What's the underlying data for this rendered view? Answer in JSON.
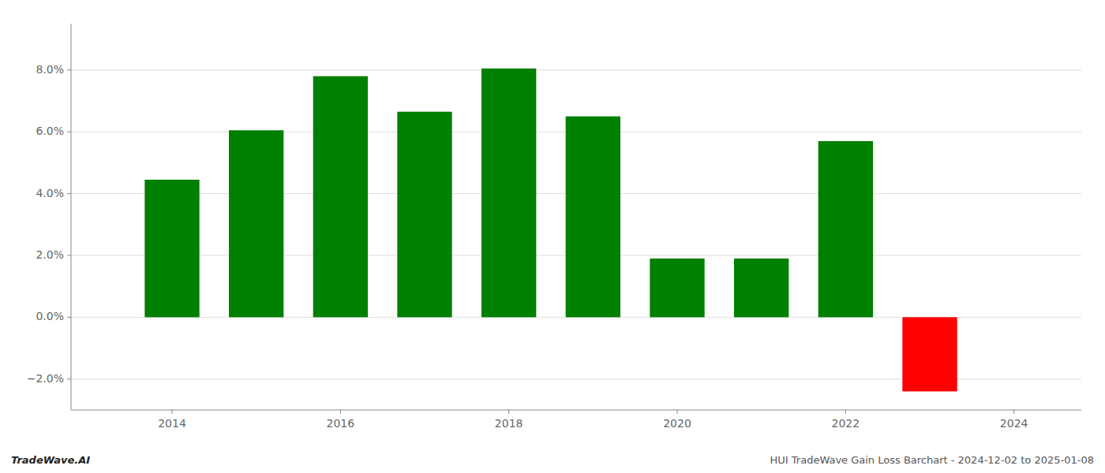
{
  "chart_data": {
    "type": "bar",
    "x": [
      2014,
      2015,
      2016,
      2017,
      2018,
      2019,
      2020,
      2021,
      2022,
      2023
    ],
    "values": [
      0.0445,
      0.0605,
      0.078,
      0.0665,
      0.0805,
      0.065,
      0.019,
      0.019,
      0.057,
      -0.024
    ],
    "colors": [
      "#008000",
      "#008000",
      "#008000",
      "#008000",
      "#008000",
      "#008000",
      "#008000",
      "#008000",
      "#008000",
      "#ff0000"
    ],
    "ylim": [
      -0.03,
      0.095
    ],
    "yticks": [
      {
        "value": -0.02,
        "label": "−2.0%"
      },
      {
        "value": 0.0,
        "label": "0.0%"
      },
      {
        "value": 0.02,
        "label": "2.0%"
      },
      {
        "value": 0.04,
        "label": "4.0%"
      },
      {
        "value": 0.06,
        "label": "6.0%"
      },
      {
        "value": 0.08,
        "label": "8.0%"
      }
    ],
    "xlim": [
      2012.8,
      2024.8
    ],
    "xticks": [
      2014,
      2016,
      2018,
      2020,
      2022,
      2024
    ],
    "grid": true,
    "annotations": [
      "TradeWave.AI",
      "HUI TradeWave Gain Loss Barchart - 2024-12-02 to 2025-01-08"
    ]
  }
}
